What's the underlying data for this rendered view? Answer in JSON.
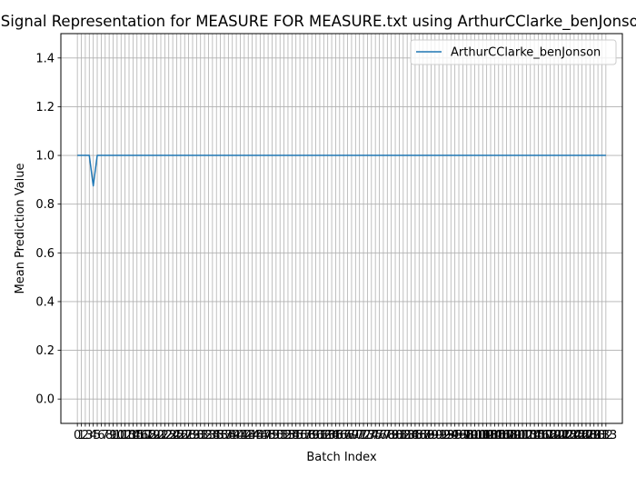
{
  "chart_data": {
    "type": "line",
    "title": "Signal Representation for MEASURE FOR MEASURE.txt using ArthurCClarke_benJonson",
    "xlabel": "Batch Index",
    "ylabel": "Mean Prediction Value",
    "xlim": [
      -4.15,
      137.15
    ],
    "ylim": [
      -0.1,
      1.5
    ],
    "yticks": [
      0.0,
      0.2,
      0.4,
      0.6,
      0.8,
      1.0,
      1.2,
      1.4
    ],
    "ytick_labels": [
      "0.0",
      "0.2",
      "0.4",
      "0.6",
      "0.8",
      "1.0",
      "1.2",
      "1.4"
    ],
    "x_tick_start": 0,
    "x_tick_end": 133,
    "grid": true,
    "legend_position": "upper right",
    "line_color": "#1f77b4",
    "series": [
      {
        "name": "ArthurCClarke_benJonson",
        "anomalies": {
          "3": 1.0,
          "4": 0.875,
          "5": 1.0
        },
        "baseline": 1.0
      }
    ]
  }
}
